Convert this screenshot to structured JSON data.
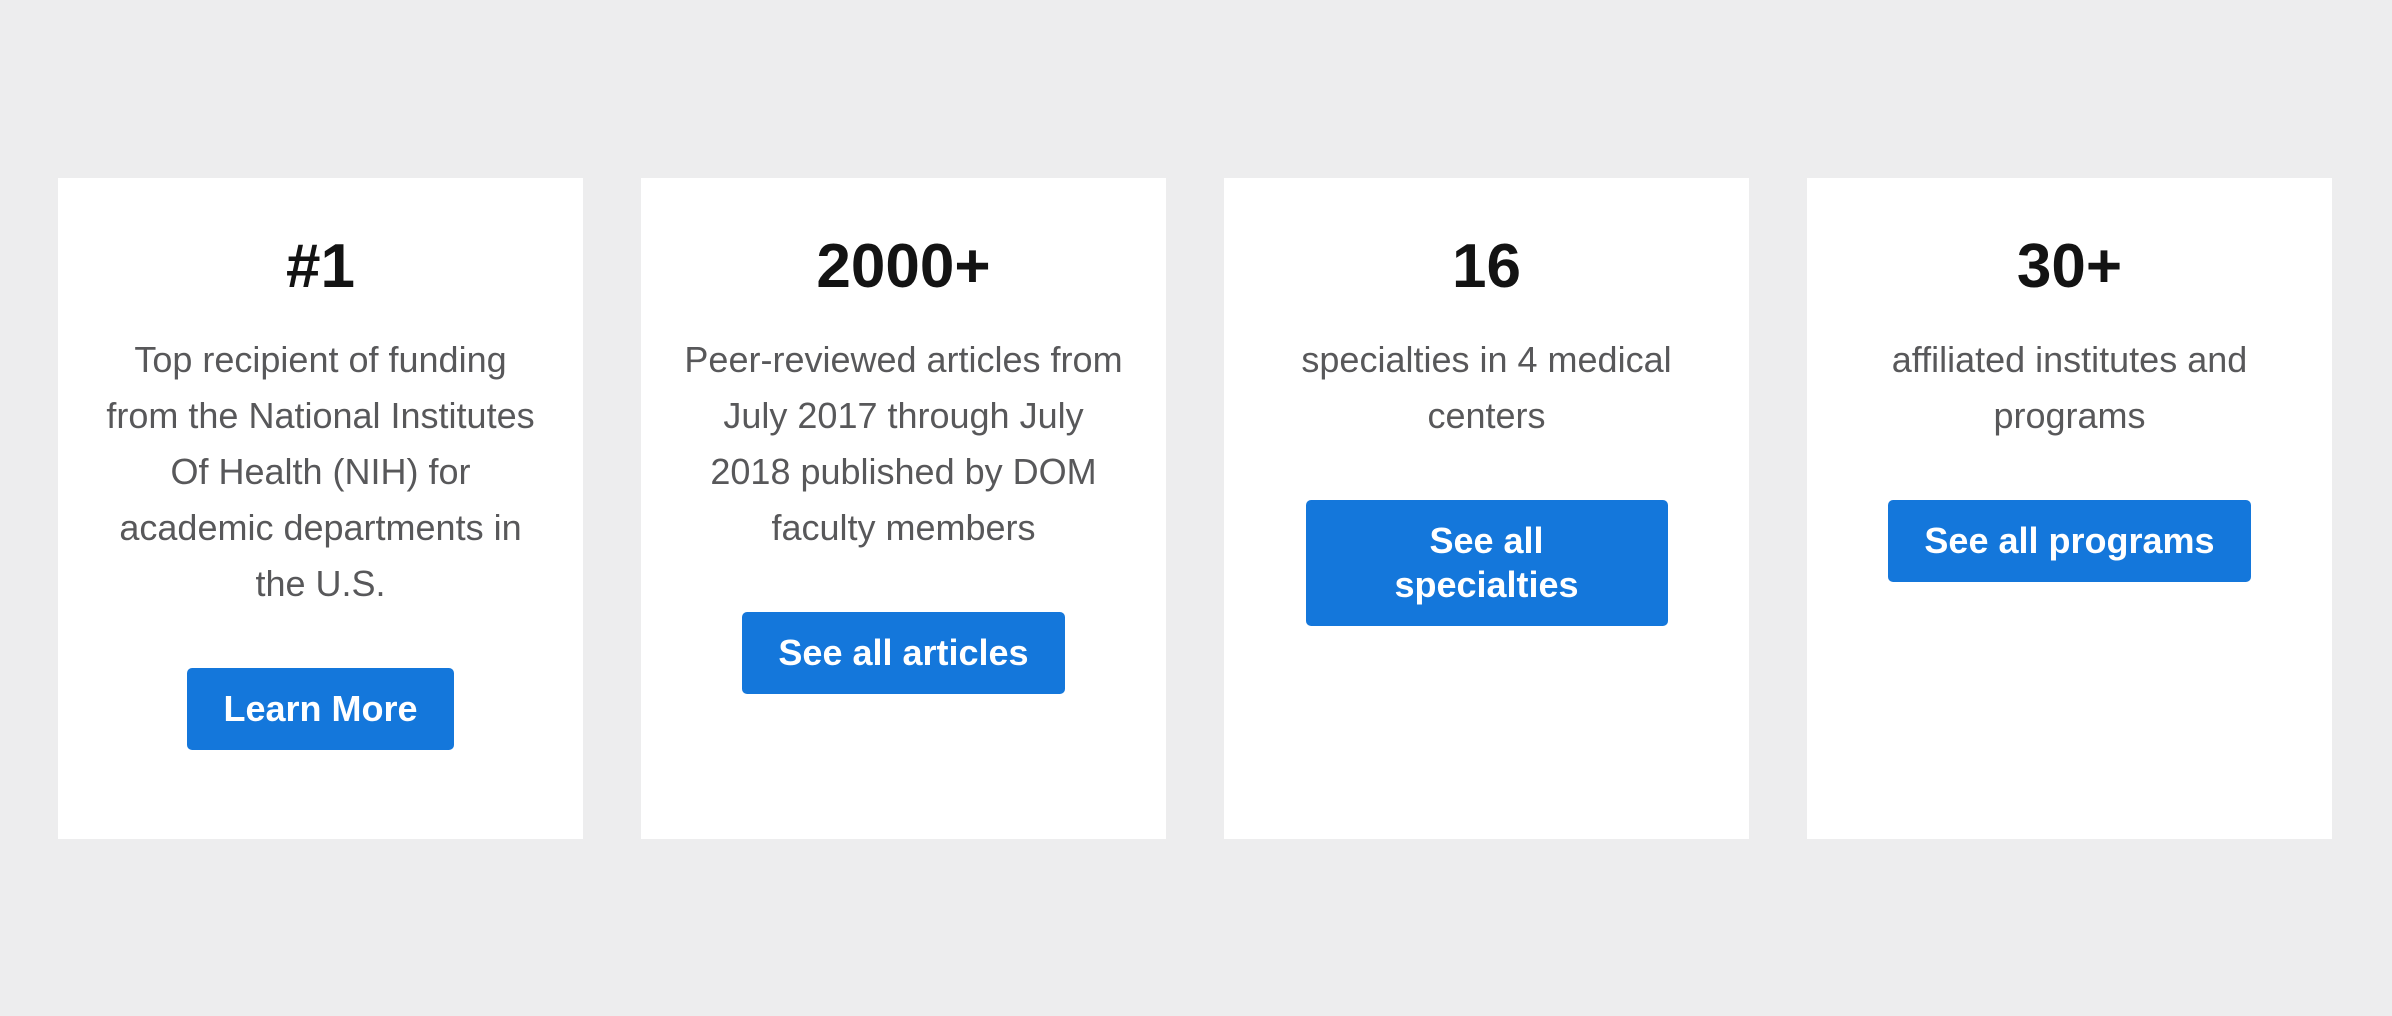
{
  "page": {
    "background_color": "#ededee",
    "card_background_color": "#ffffff",
    "accent_blue": "#1477db",
    "stat_text_color": "#131313",
    "description_text_color": "#58585a",
    "button_text_color": "#ffffff"
  },
  "cards": [
    {
      "stat": "#1",
      "description": "Top recipient of funding from the National Institutes Of Health (NIH) for academic departments in the U.S.",
      "button_label": "Learn More"
    },
    {
      "stat": "2000+",
      "description": "Peer-reviewed articles from July 2017 through July 2018 published by DOM faculty members",
      "button_label": "See all articles"
    },
    {
      "stat": "16",
      "description": "specialties in 4 medical centers",
      "button_label": "See all specialties"
    },
    {
      "stat": "30+",
      "description": "affiliated institutes and programs",
      "button_label": "See all programs"
    }
  ]
}
